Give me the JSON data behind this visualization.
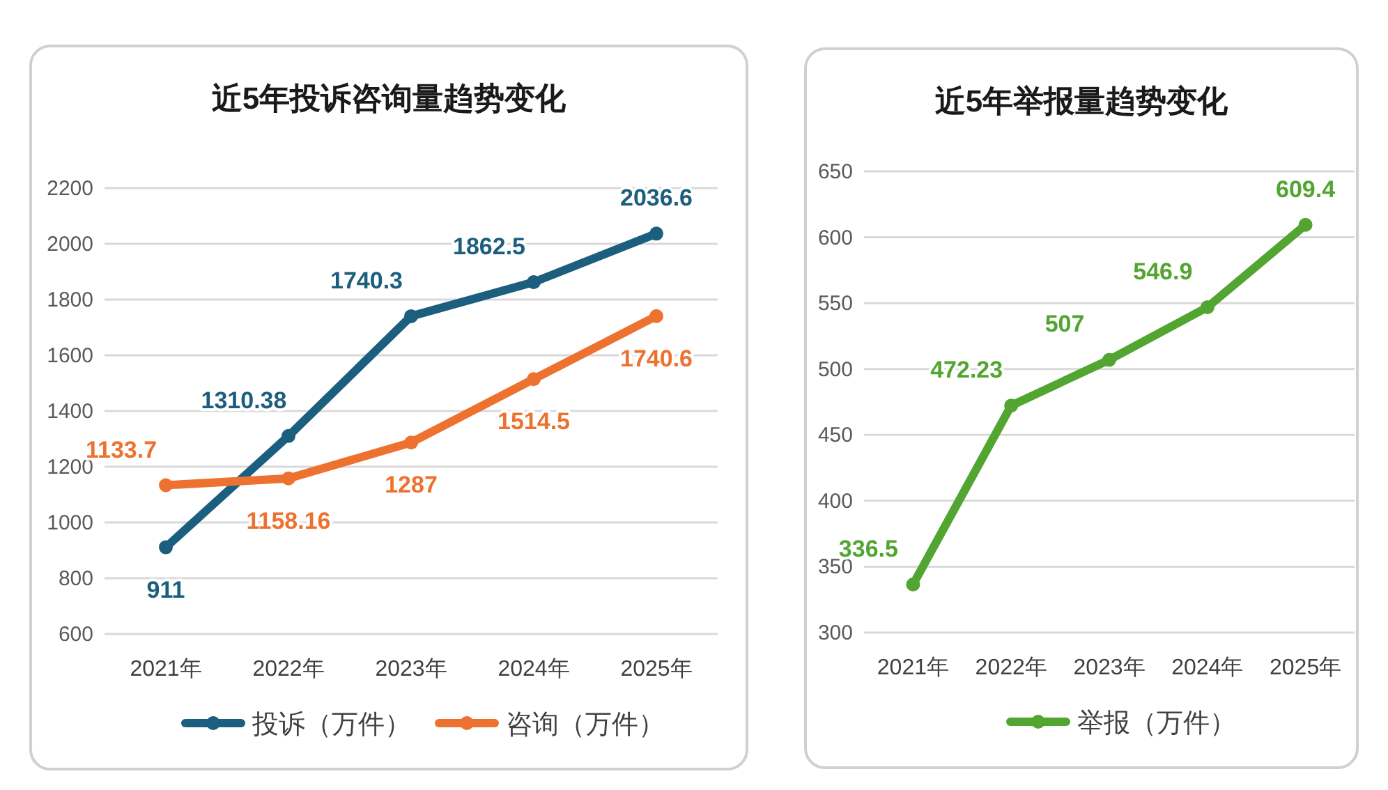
{
  "chart_data": [
    {
      "type": "line",
      "title": "近5年投诉咨询量趋势变化",
      "categories": [
        "2021年",
        "2022年",
        "2023年",
        "2024年",
        "2025年"
      ],
      "ylim": [
        600,
        2200
      ],
      "yticks": [
        600,
        800,
        1000,
        1200,
        1400,
        1600,
        1800,
        2000,
        2200
      ],
      "grid": "y",
      "legend": "bottom",
      "marker": "circle",
      "data_labels": true,
      "series": [
        {
          "name": "投诉（万件）",
          "color": "#1b5e7e",
          "values": [
            911,
            1310.38,
            1740.3,
            1862.5,
            2036.6
          ]
        },
        {
          "name": "咨询（万件）",
          "color": "#ed7230",
          "values": [
            1133.7,
            1158.16,
            1287,
            1514.5,
            1740.6
          ]
        }
      ]
    },
    {
      "type": "line",
      "title": "近5年举报量趋势变化",
      "categories": [
        "2021年",
        "2022年",
        "2023年",
        "2024年",
        "2025年"
      ],
      "ylim": [
        300,
        650
      ],
      "yticks": [
        300,
        350,
        400,
        450,
        500,
        550,
        600,
        650
      ],
      "grid": "y",
      "legend": "bottom",
      "marker": "circle",
      "data_labels": true,
      "series": [
        {
          "name": "举报（万件）",
          "color": "#52a530",
          "values": [
            336.5,
            472.23,
            507,
            546.9,
            609.4
          ]
        }
      ]
    }
  ]
}
